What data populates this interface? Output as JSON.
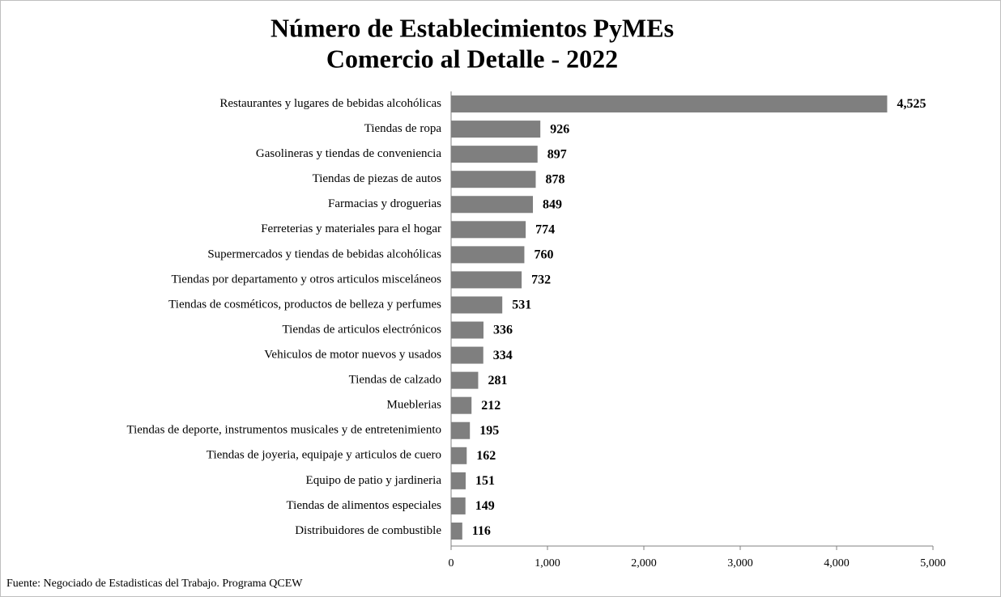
{
  "chart_data": {
    "type": "hbar",
    "title": "Número de Establecimientos PyMEs",
    "subtitle": "Comercio al Detalle - 2022",
    "source": "Fuente: Negociado de Estadisticas del Trabajo. Programa QCEW",
    "categories": [
      "Restaurantes y lugares de bebidas alcohólicas",
      "Tiendas de ropa",
      "Gasolineras y tiendas de conveniencia",
      "Tiendas de piezas de autos",
      "Farmacias y droguerias",
      "Ferreterias y materiales para el hogar",
      "Supermercados y tiendas de bebidas alcohólicas",
      "Tiendas por departamento y otros articulos misceláneos",
      "Tiendas de cosméticos, productos de belleza y perfumes",
      "Tiendas de articulos electrónicos",
      "Vehiculos de motor nuevos y usados",
      "Tiendas de calzado",
      "Mueblerias",
      "Tiendas de deporte, instrumentos musicales y de entretenimiento",
      "Tiendas de joyeria, equipaje y articulos de cuero",
      "Equipo de patio y jardineria",
      "Tiendas de alimentos especiales",
      "Distribuidores de combustible"
    ],
    "values": [
      4525,
      926,
      897,
      878,
      849,
      774,
      760,
      732,
      531,
      336,
      334,
      281,
      212,
      195,
      162,
      151,
      149,
      116
    ],
    "value_labels": [
      "4,525",
      "926",
      "897",
      "878",
      "849",
      "774",
      "760",
      "732",
      "531",
      "336",
      "334",
      "281",
      "212",
      "195",
      "162",
      "151",
      "149",
      "116"
    ],
    "color": "#7f7f7f",
    "xlim": [
      0,
      5000
    ],
    "xticks": [
      0,
      {
        "value": 1000,
        "label": "1,000"
      },
      {
        "value": 2000,
        "label": "2,000"
      },
      {
        "value": 3000,
        "label": "3,000"
      },
      {
        "value": 4000,
        "label": "4,000"
      },
      {
        "value": 5000,
        "label": "5,000"
      }
    ]
  }
}
